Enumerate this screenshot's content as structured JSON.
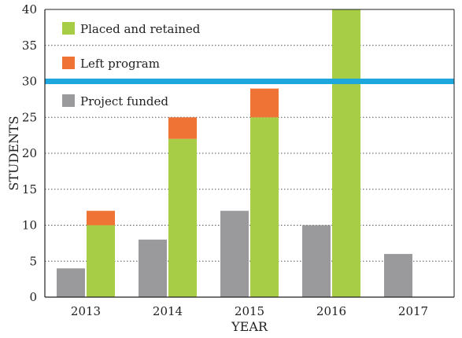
{
  "chart_data": {
    "type": "bar",
    "xlabel": "YEAR",
    "ylabel": "STUDENTS",
    "ylim": [
      0,
      40
    ],
    "yticks": [
      0,
      5,
      10,
      15,
      20,
      25,
      30,
      35,
      40
    ],
    "grid": "horizontal dotted",
    "categories": [
      "2013",
      "2014",
      "2015",
      "2016",
      "2017"
    ],
    "series": [
      {
        "name": "Project funded",
        "values": [
          4,
          8,
          12,
          10,
          6
        ],
        "color": "#9a9a9c"
      },
      {
        "name": "Placed and retained",
        "values": [
          10,
          22,
          25,
          40,
          null
        ],
        "color": "#a7cc46"
      },
      {
        "name": "Left program",
        "values": [
          2,
          3,
          4,
          0,
          null
        ],
        "color": "#f07336",
        "stacked_on": "Placed and retained"
      }
    ],
    "reference_line": {
      "y": 30,
      "color": "#1ea7dc"
    },
    "legend": {
      "placement": "top-left",
      "order": [
        "Placed and retained",
        "Left program",
        "Project funded"
      ]
    }
  }
}
